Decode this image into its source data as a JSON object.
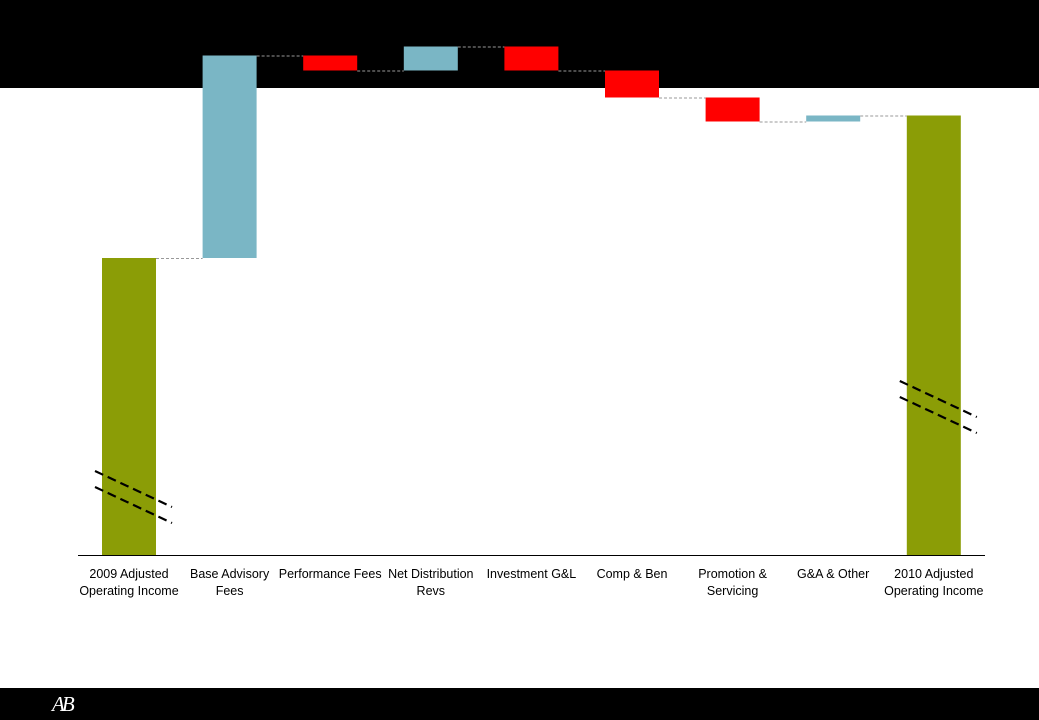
{
  "logo": {
    "text": "AB"
  },
  "chart_data": {
    "type": "bar",
    "subtype": "waterfall",
    "title": "",
    "xlabel": "",
    "ylabel": "",
    "axis_break": true,
    "categories": [
      "2009 Adjusted Operating Income",
      "Base Advisory Fees",
      "Performance Fees",
      "Net Distribution Revs",
      "Investment G&L",
      "Comp & Ben",
      "Promotion & Servicing",
      "G&A & Other",
      "2010 Adjusted Operating Income"
    ],
    "bars": [
      {
        "kind": "total",
        "start": 0,
        "end": 100
      },
      {
        "kind": "delta",
        "start": 100,
        "end": 235
      },
      {
        "kind": "delta",
        "start": 235,
        "end": 225
      },
      {
        "kind": "delta",
        "start": 225,
        "end": 241
      },
      {
        "kind": "delta",
        "start": 241,
        "end": 225
      },
      {
        "kind": "delta",
        "start": 225,
        "end": 207
      },
      {
        "kind": "delta",
        "start": 207,
        "end": 191
      },
      {
        "kind": "delta",
        "start": 191,
        "end": 195
      },
      {
        "kind": "total",
        "start": 0,
        "end": 195
      }
    ],
    "ylim": [
      -98,
      250
    ],
    "grid": false,
    "legend": "none",
    "colors": {
      "total": "#8b9d06",
      "increase": "#7ab6c5",
      "decrease": "#ff0000",
      "connector": "#999999",
      "axis": "#000000"
    }
  }
}
